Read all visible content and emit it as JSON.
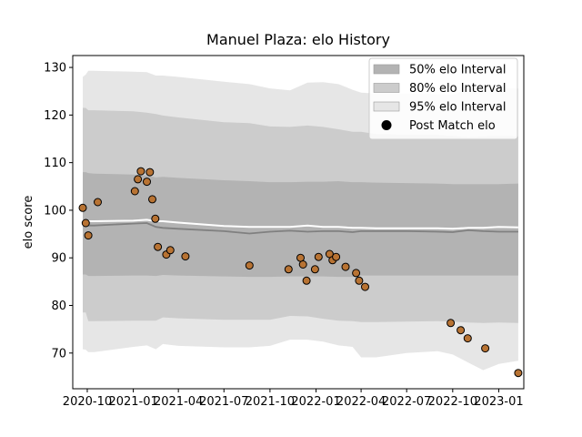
{
  "chart_data": {
    "type": "line",
    "title": "Manuel Plaza: elo History",
    "xlabel": "",
    "ylabel": "elo score",
    "x_ticks": [
      "2020-10",
      "2021-01",
      "2021-04",
      "2021-07",
      "2021-10",
      "2022-01",
      "2022-04",
      "2022-07",
      "2022-10",
      "2023-01"
    ],
    "y_ticks": [
      "70",
      "80",
      "90",
      "100",
      "110",
      "120",
      "130"
    ],
    "xlim": [
      "2020-09-02",
      "2023-02-20"
    ],
    "ylim": [
      62.5,
      132.5
    ],
    "legend": {
      "position": "top-right",
      "entries": [
        {
          "label": "50% elo Interval",
          "color": "#b3b3b3",
          "kind": "patch"
        },
        {
          "label": "80% elo Interval",
          "color": "#cccccc",
          "kind": "patch"
        },
        {
          "label": "95% elo Interval",
          "color": "#e6e6e6",
          "kind": "patch"
        },
        {
          "label": "Post Match elo",
          "color": "#000000",
          "kind": "marker"
        }
      ]
    },
    "band_dates": [
      "2020-09-22",
      "2020-09-28",
      "2020-10-03",
      "2020-10-15",
      "2021-01-01",
      "2021-01-28",
      "2021-02-15",
      "2021-03-01",
      "2021-04-01",
      "2021-07-01",
      "2021-08-21",
      "2021-10-01",
      "2021-11-10",
      "2021-12-15",
      "2022-01-15",
      "2022-02-15",
      "2022-03-15",
      "2022-04-01",
      "2022-05-01",
      "2022-07-01",
      "2022-09-01",
      "2022-10-01",
      "2022-11-01",
      "2022-12-01",
      "2023-01-01",
      "2023-02-09"
    ],
    "series": [
      {
        "name": "95% elo Interval",
        "upper": [
          128,
          128.5,
          129.3,
          129.3,
          129.1,
          129,
          128.3,
          128.3,
          128,
          127,
          126.5,
          125.6,
          125.2,
          126.8,
          126.9,
          126.5,
          125.3,
          124.7,
          124.5,
          124.5,
          124.4,
          124.2,
          125.5,
          125.8,
          125.7,
          125.6
        ],
        "lower": [
          70.8,
          70.7,
          70.2,
          70.2,
          71.3,
          71.6,
          70.8,
          71.9,
          71.5,
          71.2,
          71.2,
          71.5,
          72.8,
          72.8,
          72.4,
          71.6,
          71.3,
          69.1,
          69.1,
          70,
          70.4,
          69.7,
          68,
          66.4,
          67.7,
          68.4
        ]
      },
      {
        "name": "80% elo Interval",
        "upper": [
          121.5,
          121.5,
          121,
          121,
          120.8,
          120.5,
          120.2,
          119.9,
          119.5,
          118.5,
          118.3,
          117.6,
          117.5,
          117.8,
          117.5,
          117,
          116.5,
          116.5,
          116,
          115.8,
          115.8,
          115.6,
          115.3,
          115.5,
          115.6,
          115.5
        ],
        "lower": [
          78.5,
          78.5,
          76.7,
          76.7,
          76.8,
          76.8,
          76.8,
          77.5,
          77.3,
          77,
          77,
          77,
          77.8,
          77.7,
          77.2,
          76.8,
          76.7,
          76.5,
          76.5,
          76.6,
          76.7,
          76.6,
          76.4,
          76.3,
          76.4,
          76.3
        ]
      },
      {
        "name": "50% elo Interval",
        "upper": [
          108,
          108,
          107.8,
          107.7,
          107.5,
          107.3,
          106.9,
          107,
          106.8,
          106.3,
          106.1,
          105.9,
          105.9,
          106,
          106,
          106.1,
          105.9,
          105.9,
          105.8,
          105.7,
          105.6,
          105.5,
          105.5,
          105.5,
          105.5,
          105.6
        ],
        "lower": [
          86.5,
          86.5,
          86.2,
          86.2,
          86.3,
          86.3,
          86.2,
          86.4,
          86.3,
          86.1,
          86,
          86,
          86.1,
          86.1,
          86.1,
          86,
          86,
          86.3,
          86.3,
          86.3,
          86.3,
          86.3,
          86.3,
          86.3,
          86.3,
          86.3
        ]
      },
      {
        "name": "",
        "line": "mean",
        "values": [
          97,
          97,
          96.8,
          96.8,
          97.2,
          97.3,
          96.5,
          96.3,
          96.1,
          95.6,
          95.1,
          95.5,
          95.7,
          95.5,
          95.6,
          95.6,
          95.4,
          95.6,
          95.6,
          95.6,
          95.5,
          95.4,
          95.8,
          95.6,
          95.5,
          95.5
        ]
      },
      {
        "name": "",
        "line": "median",
        "values": [
          97.8,
          97.8,
          97.7,
          97.7,
          97.8,
          98,
          97.7,
          97.7,
          97.4,
          96.7,
          96.5,
          96.5,
          96.5,
          96.8,
          96.5,
          96.5,
          96.3,
          96.3,
          96.2,
          96.2,
          96.2,
          96.1,
          96.3,
          96.3,
          96.5,
          96.4
        ]
      },
      {
        "name": "Post Match elo",
        "points": [
          {
            "x": "2020-09-22",
            "y": 100.5
          },
          {
            "x": "2020-09-28",
            "y": 97.3
          },
          {
            "x": "2020-10-03",
            "y": 94.7
          },
          {
            "x": "2020-10-22",
            "y": 101.7
          },
          {
            "x": "2021-01-04",
            "y": 104
          },
          {
            "x": "2021-01-10",
            "y": 106.5
          },
          {
            "x": "2021-01-16",
            "y": 108.2
          },
          {
            "x": "2021-01-28",
            "y": 106
          },
          {
            "x": "2021-02-03",
            "y": 108
          },
          {
            "x": "2021-02-08",
            "y": 102.3
          },
          {
            "x": "2021-02-14",
            "y": 98.2
          },
          {
            "x": "2021-02-19",
            "y": 92.3
          },
          {
            "x": "2021-03-08",
            "y": 90.7
          },
          {
            "x": "2021-03-16",
            "y": 91.6
          },
          {
            "x": "2021-04-15",
            "y": 90.3
          },
          {
            "x": "2021-08-21",
            "y": 88.4
          },
          {
            "x": "2021-11-07",
            "y": 87.6
          },
          {
            "x": "2021-12-01",
            "y": 90
          },
          {
            "x": "2021-12-06",
            "y": 88.6
          },
          {
            "x": "2021-12-13",
            "y": 85.2
          },
          {
            "x": "2021-12-30",
            "y": 87.6
          },
          {
            "x": "2022-01-06",
            "y": 90.2
          },
          {
            "x": "2022-01-28",
            "y": 90.8
          },
          {
            "x": "2022-02-03",
            "y": 89.5
          },
          {
            "x": "2022-02-10",
            "y": 90.2
          },
          {
            "x": "2022-03-01",
            "y": 88.1
          },
          {
            "x": "2022-03-22",
            "y": 86.8
          },
          {
            "x": "2022-03-28",
            "y": 85.2
          },
          {
            "x": "2022-04-09",
            "y": 83.9
          },
          {
            "x": "2022-09-27",
            "y": 76.3
          },
          {
            "x": "2022-10-17",
            "y": 74.8
          },
          {
            "x": "2022-10-31",
            "y": 73.1
          },
          {
            "x": "2022-12-05",
            "y": 71
          },
          {
            "x": "2023-02-09",
            "y": 65.8
          }
        ]
      }
    ]
  },
  "colors": {
    "band_95": "#e6e6e6",
    "band_80": "#cccccc",
    "band_50": "#b3b3b3",
    "mean_line": "#808080",
    "median_line": "#ffffff",
    "point_fill": "#b87333",
    "point_edge": "#000000"
  }
}
